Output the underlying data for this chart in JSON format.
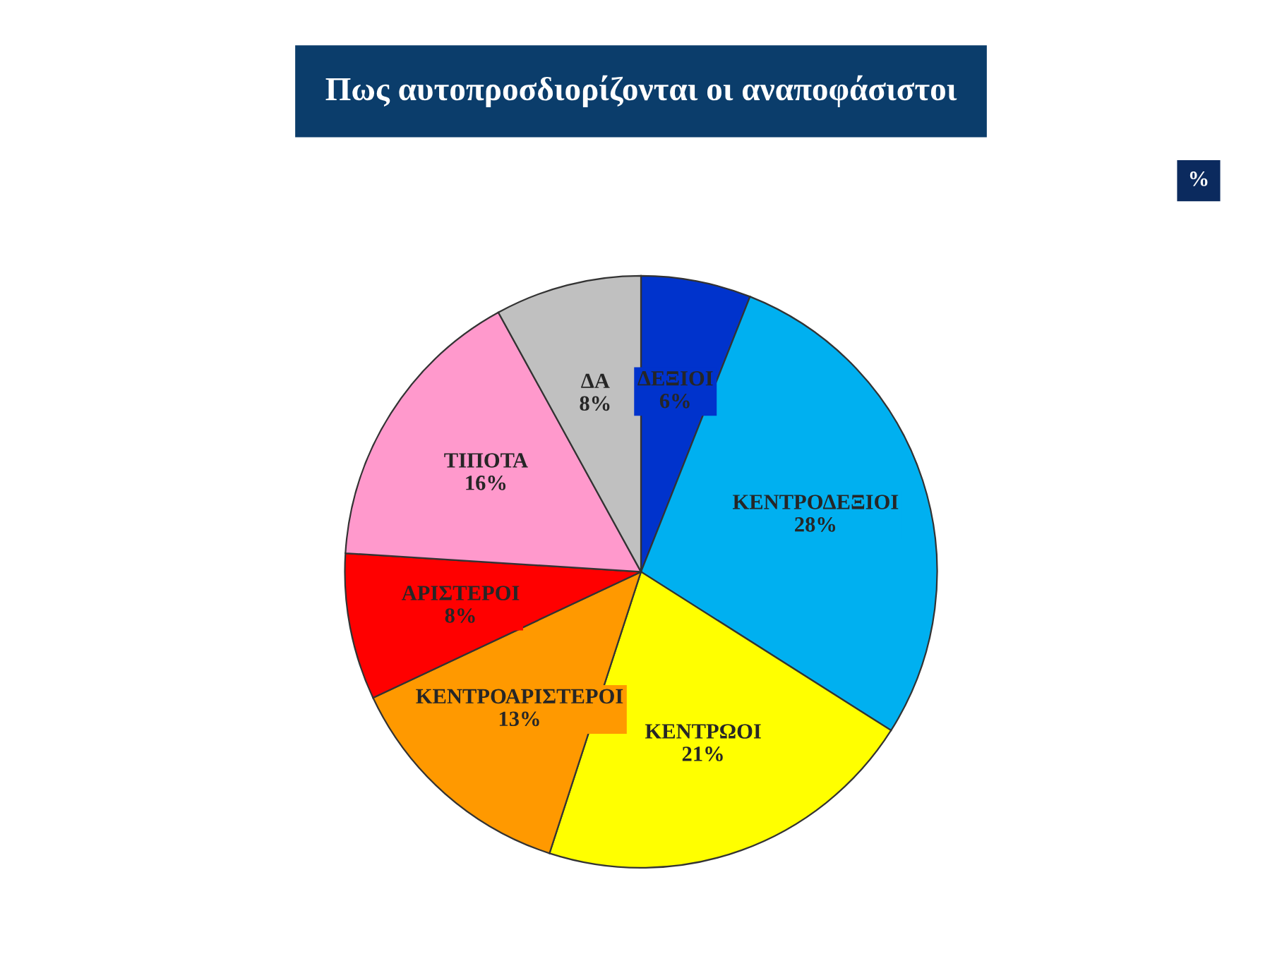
{
  "chart_data": {
    "type": "pie",
    "title": "Πως αυτοπροσδιορίζονται οι αναποφάσιστοι",
    "categories": [
      "ΔΕΞΙΟΙ",
      "ΚΕΝΤΡΟΔΕΞΙΟΙ",
      "ΚΕΝΤΡΩΟΙ",
      "ΚΕΝΤΡΟΑΡΙΣΤΕΡΟΙ",
      "ΑΡΙΣΤΕΡΟΙ",
      "ΤΙΠΟΤΑ",
      "ΔΑ"
    ],
    "values": [
      6,
      28,
      21,
      13,
      8,
      16,
      8
    ],
    "value_labels": [
      "6%",
      "28%",
      "21%",
      "13%",
      "8%",
      "16%",
      "8%"
    ],
    "colors": [
      "#0033cc",
      "#00b0f0",
      "#ffff00",
      "#ff9900",
      "#ff0000",
      "#ff99cc",
      "#c0c0c0"
    ],
    "annotations": [
      "%"
    ]
  }
}
